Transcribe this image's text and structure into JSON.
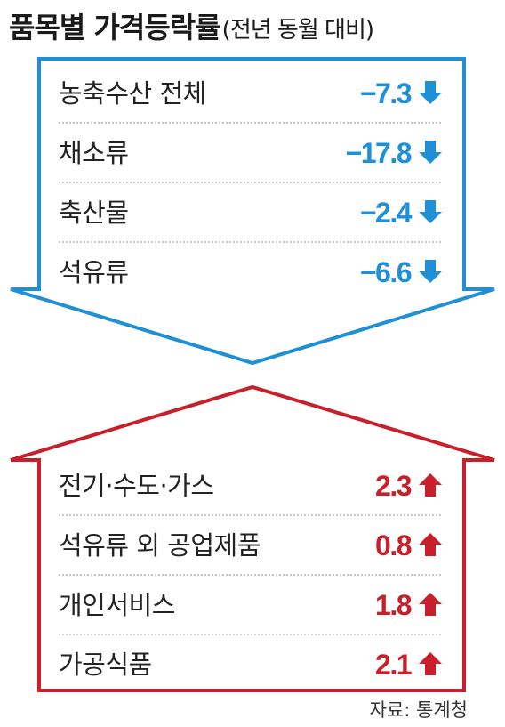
{
  "title": "품목별 가격등락률",
  "subtitle": "(전년 동월 대비)",
  "source": "자료: 통계청",
  "colors": {
    "decrease": "#1f8fd6",
    "increase": "#c8202a",
    "divider": "#aaaaaa"
  },
  "icons": {
    "decrease": "down-arrow-icon",
    "increase": "up-arrow-icon"
  },
  "chart_data": {
    "type": "table",
    "title": "품목별 가격등락률",
    "subtitle": "(전년 동월 대비)",
    "groups": [
      {
        "direction": "decrease",
        "rows": [
          {
            "label": "농축수산 전체",
            "value": -7.3,
            "display": "−7.3"
          },
          {
            "label": "채소류",
            "value": -17.8,
            "display": "−17.8"
          },
          {
            "label": "축산물",
            "value": -2.4,
            "display": "−2.4"
          },
          {
            "label": "석유류",
            "value": -6.6,
            "display": "−6.6"
          }
        ]
      },
      {
        "direction": "increase",
        "rows": [
          {
            "label": "전기·수도·가스",
            "value": 2.3,
            "display": "2.3"
          },
          {
            "label": "석유류 외 공업제품",
            "value": 0.8,
            "display": "0.8"
          },
          {
            "label": "개인서비스",
            "value": 1.8,
            "display": "1.8"
          },
          {
            "label": "가공식품",
            "value": 2.1,
            "display": "2.1"
          }
        ]
      }
    ]
  }
}
